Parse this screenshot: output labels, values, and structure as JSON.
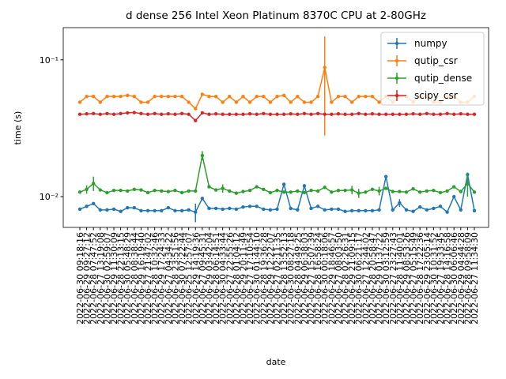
{
  "chart_data": {
    "type": "line",
    "title": "d dense 256 Intel Xeon Platinum 8370C CPU at 2-80GHz",
    "x_label": "date",
    "y_label": "time (s)",
    "log_y": true,
    "legend": "upper right",
    "categories": [
      "2022-06-30 09:18:16",
      "2022-06-29 09:27:12",
      "2022-06-28 07:47:52",
      "2022-06-27 13:19:08",
      "2022-06-30 02:59:07",
      "2022-06-29 11:30:09",
      "2022-06-28 22:13:15",
      "2022-06-30 05:48:29",
      "2022-06-28 08:38:44",
      "2022-06-29 16:19:40",
      "2022-06-27 21:47:02",
      "2022-06-28 10:32:46",
      "2022-06-29 17:24:33",
      "2022-06-27 04:34:22",
      "2022-06-28 23:51:56",
      "2022-06-30 07:22:44",
      "2022-06-25 12:57:07",
      "2022-06-29 14:19:36",
      "2022-06-27 09:45:31",
      "2022-06-29 03:42:04",
      "2022-06-28 06:14:51",
      "2022-06-30 04:33:44",
      "2022-06-27 22:55:26",
      "2022-06-28 01:04:12",
      "2022-06-29 20:11:49",
      "2022-06-27 17:10:54",
      "2022-06-30 01:44:10",
      "2022-06-28 19:36:28",
      "2022-06-29 12:22:07",
      "2022-06-27 02:11:35",
      "2022-06-28 13:52:13",
      "2022-06-30 08:27:18",
      "2022-06-28 04:49:25",
      "2022-06-29 06:38:03",
      "2022-06-27 15:07:39",
      "2022-06-28 16:58:24",
      "2022-06-30 00:18:06",
      "2022-06-29 18:46:57",
      "2022-06-27 08:03:50",
      "2022-06-28 02:26:31",
      "2022-06-29 21:09:15",
      "2022-06-30 06:21:17",
      "2022-06-27 12:44:02",
      "2022-06-28 20:58:47",
      "2022-06-29 01:37:22",
      "2022-06-30 03:12:59",
      "2022-06-27 23:27:43",
      "2022-06-28 11:40:01",
      "2022-06-29 08:53:26",
      "2022-06-27 05:15:49",
      "2022-06-28 17:22:36",
      "2022-06-29 23:05:14",
      "2022-06-30 10:31:52",
      "2022-06-27 19:33:45",
      "2022-06-28 14:16:58",
      "2022-06-30 06:06:46",
      "2022-06-29 04:44:28",
      "2022-06-28 09:58:09",
      "2022-06-27 11:34:30"
    ],
    "ylim": [
      0.00596,
      0.172
    ],
    "yticks": [
      {
        "value": 0.01,
        "label": "10⁻²"
      },
      {
        "value": 0.1,
        "label": "10⁻¹"
      }
    ],
    "series": [
      {
        "name": "numpy",
        "color": "#1f77b4",
        "values": [
          0.0081,
          0.0085,
          0.0089,
          0.008,
          0.008,
          0.0081,
          0.0078,
          0.0083,
          0.0083,
          0.0079,
          0.0079,
          0.0079,
          0.0079,
          0.0083,
          0.0079,
          0.0079,
          0.008,
          0.0077,
          0.0097,
          0.0082,
          0.0082,
          0.0081,
          0.0082,
          0.0081,
          0.0084,
          0.0085,
          0.0085,
          0.0081,
          0.008,
          0.0081,
          0.0123,
          0.0082,
          0.008,
          0.012,
          0.0082,
          0.0085,
          0.008,
          0.0081,
          0.0081,
          0.0078,
          0.0079,
          0.0079,
          0.0079,
          0.0079,
          0.008,
          0.014,
          0.008,
          0.009,
          0.008,
          0.0078,
          0.0084,
          0.008,
          0.0082,
          0.0085,
          0.0077,
          0.01,
          0.008,
          0.0145,
          0.0079
        ],
        "errors": [
          0,
          0,
          0,
          0,
          0,
          0,
          0,
          0,
          0,
          0,
          0,
          0,
          0,
          0,
          0,
          0,
          0,
          0.0012,
          0,
          0,
          0,
          0,
          0,
          0,
          0,
          0,
          0,
          0,
          0,
          0,
          0,
          0,
          0,
          0,
          0,
          0,
          0,
          0,
          0,
          0,
          0,
          0,
          0,
          0,
          0,
          0,
          0,
          0.0006,
          0,
          0,
          0,
          0,
          0,
          0,
          0,
          0,
          0,
          0,
          0
        ]
      },
      {
        "name": "qutip_csr",
        "color": "#ff7f0e",
        "values": [
          0.049,
          0.054,
          0.054,
          0.049,
          0.054,
          0.054,
          0.054,
          0.055,
          0.054,
          0.049,
          0.049,
          0.054,
          0.054,
          0.054,
          0.054,
          0.054,
          0.049,
          0.044,
          0.056,
          0.054,
          0.054,
          0.049,
          0.054,
          0.049,
          0.054,
          0.049,
          0.054,
          0.054,
          0.049,
          0.054,
          0.055,
          0.049,
          0.054,
          0.049,
          0.049,
          0.054,
          0.088,
          0.049,
          0.054,
          0.054,
          0.049,
          0.054,
          0.054,
          0.054,
          0.049,
          0.054,
          0.049,
          0.054,
          0.054,
          0.049,
          0.054,
          0.054,
          0.049,
          0.049,
          0.054,
          0.054,
          0.049,
          0.049,
          0.054
        ],
        "errors": [
          0,
          0,
          0,
          0,
          0,
          0,
          0,
          0,
          0,
          0,
          0,
          0,
          0,
          0,
          0,
          0,
          0,
          0,
          0,
          0,
          0,
          0,
          0,
          0,
          0,
          0,
          0,
          0,
          0,
          0,
          0,
          0,
          0,
          0,
          0,
          0,
          0.06,
          0,
          0,
          0,
          0,
          0,
          0,
          0,
          0,
          0,
          0,
          0,
          0,
          0,
          0,
          0,
          0,
          0,
          0,
          0,
          0,
          0,
          0
        ]
      },
      {
        "name": "qutip_dense",
        "color": "#2ca02c",
        "values": [
          0.0108,
          0.0113,
          0.0125,
          0.0112,
          0.0107,
          0.0111,
          0.0111,
          0.011,
          0.0113,
          0.0112,
          0.0107,
          0.0111,
          0.011,
          0.0109,
          0.0111,
          0.0107,
          0.011,
          0.011,
          0.02,
          0.0118,
          0.0112,
          0.0115,
          0.011,
          0.0106,
          0.0109,
          0.0111,
          0.0118,
          0.0113,
          0.0107,
          0.0111,
          0.0108,
          0.0108,
          0.011,
          0.0107,
          0.0111,
          0.011,
          0.0117,
          0.0108,
          0.0111,
          0.0111,
          0.0112,
          0.0106,
          0.0108,
          0.0113,
          0.011,
          0.0115,
          0.0109,
          0.0109,
          0.0108,
          0.0114,
          0.0108,
          0.011,
          0.0111,
          0.0107,
          0.011,
          0.0118,
          0.0109,
          0.0125,
          0.0108
        ],
        "errors": [
          0,
          0.0008,
          0.0015,
          0,
          0,
          0,
          0,
          0,
          0,
          0,
          0,
          0,
          0,
          0,
          0,
          0,
          0,
          0,
          0.0015,
          0,
          0,
          0.0008,
          0,
          0,
          0,
          0,
          0,
          0,
          0,
          0,
          0,
          0,
          0,
          0,
          0,
          0,
          0,
          0,
          0,
          0,
          0.0008,
          0.0008,
          0,
          0,
          0.0008,
          0,
          0,
          0,
          0,
          0,
          0,
          0,
          0,
          0,
          0,
          0,
          0,
          0.0025,
          0
        ]
      },
      {
        "name": "scipy_csr",
        "color": "#d62728",
        "values": [
          0.04,
          0.0403,
          0.0405,
          0.04,
          0.0405,
          0.04,
          0.0405,
          0.041,
          0.0412,
          0.0405,
          0.04,
          0.0405,
          0.04,
          0.0403,
          0.04,
          0.0405,
          0.04,
          0.036,
          0.041,
          0.04,
          0.0403,
          0.04,
          0.04,
          0.04,
          0.04,
          0.0403,
          0.04,
          0.0405,
          0.04,
          0.04,
          0.04,
          0.0403,
          0.04,
          0.0405,
          0.04,
          0.0405,
          0.04,
          0.04,
          0.0403,
          0.04,
          0.04,
          0.0405,
          0.04,
          0.0403,
          0.04,
          0.04,
          0.04,
          0.04,
          0.04,
          0.0403,
          0.04,
          0.0405,
          0.04,
          0.04,
          0.0405,
          0.04,
          0.0403,
          0.04,
          0.04
        ],
        "errors": [
          0,
          0,
          0,
          0,
          0,
          0,
          0,
          0,
          0,
          0,
          0,
          0,
          0,
          0,
          0,
          0,
          0,
          0,
          0,
          0,
          0,
          0,
          0,
          0,
          0,
          0,
          0,
          0,
          0,
          0,
          0,
          0,
          0,
          0,
          0,
          0,
          0,
          0,
          0,
          0,
          0,
          0,
          0,
          0,
          0,
          0,
          0,
          0,
          0,
          0,
          0,
          0,
          0,
          0,
          0,
          0,
          0,
          0,
          0
        ]
      }
    ]
  }
}
